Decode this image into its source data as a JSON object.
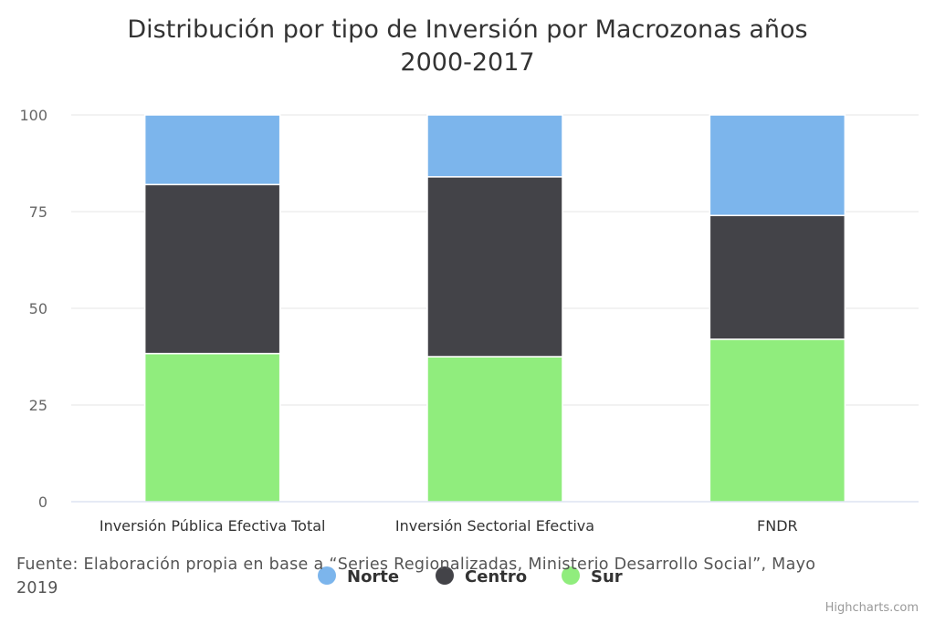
{
  "chart_data": {
    "type": "bar",
    "stacked": true,
    "title": "Distribución por tipo de Inversión por Macrozonas años 2000-2017",
    "title_lines": [
      "Distribución por tipo de Inversión por Macrozonas años",
      "2000-2017"
    ],
    "categories": [
      "Inversión Pública Efectiva Total",
      "Inversión Sectorial Efectiva",
      "FNDR"
    ],
    "series": [
      {
        "name": "Sur",
        "color": "#90ed7d",
        "values": [
          38.3,
          37.5,
          42
        ]
      },
      {
        "name": "Centro",
        "color": "#434348",
        "values": [
          43.7,
          46.5,
          32
        ]
      },
      {
        "name": "Norte",
        "color": "#7cb5ec",
        "values": [
          18,
          16,
          26
        ]
      }
    ],
    "ylim": [
      0,
      100
    ],
    "yticks": [
      0,
      25,
      50,
      75,
      100
    ],
    "grid": true,
    "legend_position": "bottom-center",
    "legend_order": [
      "Norte",
      "Centro",
      "Sur"
    ],
    "caption": "Fuente: Elaboración propia en base a “Series Regionalizadas, Ministerio Desarrollo Social”, Mayo 2019",
    "credits": "Highcharts.com"
  }
}
